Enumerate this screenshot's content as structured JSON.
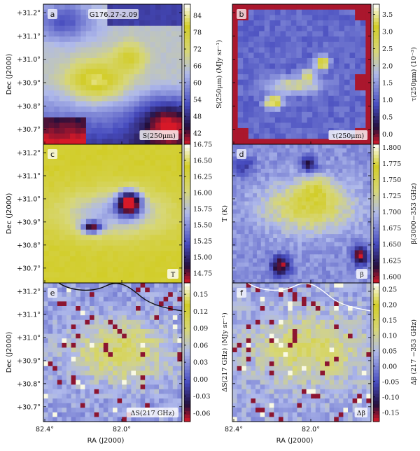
{
  "figure": {
    "ra_ticks": [
      "82.4°",
      "82.0°"
    ],
    "dec_ticks": [
      "+31.2°",
      "+31.1°",
      "+31.0°",
      "+30.9°",
      "+30.8°",
      "+30.7°"
    ],
    "xlabel": "RA (J2000)",
    "ylabel": "Dec (J2000)"
  },
  "chart_data": [
    {
      "type": "heatmap",
      "panel": "a",
      "title": "G176.27-2.09",
      "corner_label": "S(250μm)",
      "colorbar": {
        "label": "",
        "ticks": [
          "84",
          "78",
          "72",
          "66",
          "60",
          "54",
          "48",
          "42"
        ],
        "range": [
          38,
          88
        ]
      },
      "colormap": "red-blue-yellow-white"
    },
    {
      "type": "heatmap",
      "panel": "b",
      "title": "",
      "corner_label": "τ(250μm)",
      "colorbar": {
        "label": "τ(250μm) (10⁻³)",
        "ticks": [
          "3.5",
          "3.0",
          "2.5",
          "2.0",
          "1.5",
          "1.0",
          "0.5",
          "0.0"
        ],
        "range": [
          -0.3,
          3.8
        ]
      },
      "left_label": "S(250μm) (MJy sr⁻¹)",
      "colormap": "red-blue-yellow-white"
    },
    {
      "type": "heatmap",
      "panel": "c",
      "title": "",
      "corner_label": "T",
      "colorbar": {
        "label": "T (K)",
        "ticks": [
          "16.75",
          "16.50",
          "16.25",
          "16.00",
          "15.75",
          "15.50",
          "15.25",
          "15.00",
          "14.75"
        ],
        "range": [
          14.6,
          16.75
        ]
      },
      "colormap": "red-blue-yellow-white"
    },
    {
      "type": "heatmap",
      "panel": "d",
      "title": "",
      "corner_label": "β",
      "colorbar": {
        "label": "β(3000−353 GHz)",
        "ticks": [
          "1.800",
          "1.775",
          "1.750",
          "1.725",
          "1.700",
          "1.675",
          "1.650",
          "1.625",
          "1.600"
        ],
        "range": [
          1.59,
          1.805
        ]
      },
      "colormap": "red-blue-yellow-white"
    },
    {
      "type": "heatmap",
      "panel": "e",
      "title": "",
      "corner_label": "ΔS(217 GHz)",
      "colorbar": {
        "label": "ΔS(217 GHz) (MJy sr⁻¹)",
        "ticks": [
          "0.15",
          "0.12",
          "0.09",
          "0.06",
          "0.03",
          "0.00",
          "-0.03",
          "-0.06"
        ],
        "range": [
          -0.075,
          0.17
        ]
      },
      "left_label": "",
      "colormap": "red-blue-yellow-white"
    },
    {
      "type": "heatmap",
      "panel": "f",
      "title": "",
      "corner_label": "Δβ",
      "colorbar": {
        "label": "Δβ (217 −353 GHz)",
        "ticks": [
          "0.25",
          "0.20",
          "0.15",
          "0.10",
          "0.05",
          "0.00",
          "-0.05",
          "-0.10",
          "-0.15"
        ],
        "range": [
          -0.18,
          0.27
        ]
      },
      "colormap": "red-blue-yellow-white"
    }
  ]
}
